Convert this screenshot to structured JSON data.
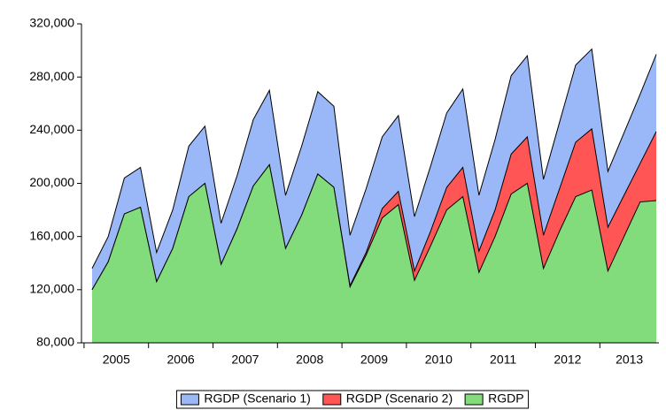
{
  "chart_data": {
    "type": "area",
    "categories": [
      "2005",
      null,
      null,
      null,
      "2006",
      null,
      null,
      null,
      "2007",
      null,
      null,
      null,
      "2008",
      null,
      null,
      null,
      "2009",
      null,
      null,
      null,
      "2010",
      null,
      null,
      null,
      "2011",
      null,
      null,
      null,
      "2012",
      null,
      null,
      null,
      "2013",
      null,
      null,
      null
    ],
    "series": [
      {
        "name": "RGDP (Scenario 1)",
        "color": "#9ab8f7",
        "values": [
          136000,
          160000,
          204000,
          212000,
          148000,
          180000,
          228000,
          243000,
          170000,
          206000,
          248000,
          270000,
          191000,
          228000,
          269000,
          258000,
          161000,
          196000,
          235000,
          251000,
          175000,
          213000,
          253000,
          271000,
          191000,
          233000,
          281000,
          296000,
          203000,
          246000,
          289000,
          301000,
          209000,
          238000,
          267000,
          297000
        ]
      },
      {
        "name": "RGDP (Scenario 2)",
        "color": "#ff5555",
        "values": [
          120000,
          141000,
          177000,
          182000,
          126000,
          151000,
          190000,
          200000,
          139000,
          166000,
          198000,
          214000,
          151000,
          176000,
          207000,
          197000,
          123000,
          148000,
          181000,
          194000,
          134000,
          164000,
          197000,
          212000,
          149000,
          180000,
          222000,
          235000,
          161000,
          196000,
          231000,
          241000,
          167000,
          191000,
          215000,
          239000
        ]
      },
      {
        "name": "RGDP",
        "color": "#82dc7c",
        "values": [
          120000,
          141000,
          177000,
          182000,
          126000,
          151000,
          190000,
          200000,
          139000,
          166000,
          198000,
          214000,
          151000,
          176000,
          207000,
          197000,
          122000,
          146000,
          174000,
          184000,
          127000,
          153000,
          180000,
          190000,
          133000,
          160000,
          192000,
          200000,
          136000,
          164000,
          190000,
          195000,
          134000,
          160000,
          186000,
          187000
        ]
      }
    ],
    "ylim": [
      80000,
      320000
    ],
    "yticks": [
      {
        "value": 80000,
        "label": "80,000"
      },
      {
        "value": 120000,
        "label": "120,000"
      },
      {
        "value": 160000,
        "label": "160,000"
      },
      {
        "value": 200000,
        "label": "200,000"
      },
      {
        "value": 240000,
        "label": "240,000"
      },
      {
        "value": 280000,
        "label": "280,000"
      },
      {
        "value": 320000,
        "label": "320,000"
      }
    ],
    "legend": "bottom"
  }
}
